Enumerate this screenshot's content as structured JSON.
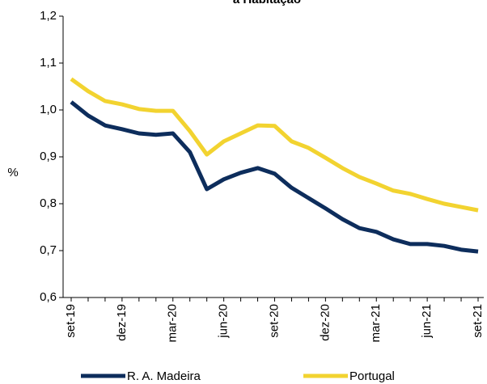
{
  "chart_data": {
    "type": "line",
    "title": "a Habitação",
    "ylabel": "%",
    "categories": [
      "set-19",
      null,
      null,
      "dez-19",
      null,
      null,
      "mar-20",
      null,
      null,
      "jun-20",
      null,
      null,
      "set-20",
      null,
      null,
      "dez-20",
      null,
      null,
      "mar-21",
      null,
      null,
      "jun-21",
      null,
      null,
      "set-21"
    ],
    "series": [
      {
        "name": "R. A. Madeira",
        "color": "#0d2d5c",
        "values": [
          1.017,
          0.988,
          0.967,
          0.959,
          0.95,
          0.947,
          0.95,
          0.91,
          0.831,
          0.852,
          0.866,
          0.876,
          0.864,
          0.834,
          0.812,
          0.79,
          0.767,
          0.748,
          0.74,
          0.724,
          0.714,
          0.714,
          0.71,
          0.702,
          0.698
        ]
      },
      {
        "name": "Portugal",
        "color": "#f2d330",
        "values": [
          1.066,
          1.04,
          1.019,
          1.012,
          1.002,
          0.998,
          0.998,
          0.955,
          0.905,
          0.933,
          0.95,
          0.967,
          0.966,
          0.933,
          0.919,
          0.898,
          0.876,
          0.857,
          0.843,
          0.828,
          0.821,
          0.81,
          0.8,
          0.793,
          0.786
        ]
      }
    ],
    "ylim": [
      0.6,
      1.2
    ],
    "yticks": [
      {
        "value": 0.6,
        "label": "0,6"
      },
      {
        "value": 0.7,
        "label": "0,7"
      },
      {
        "value": 0.8,
        "label": "0,8"
      },
      {
        "value": 0.9,
        "label": "0,9"
      },
      {
        "value": 1.0,
        "label": "1,0"
      },
      {
        "value": 1.1,
        "label": "1,1"
      },
      {
        "value": 1.2,
        "label": "1,2"
      }
    ],
    "legend": "bottom"
  }
}
